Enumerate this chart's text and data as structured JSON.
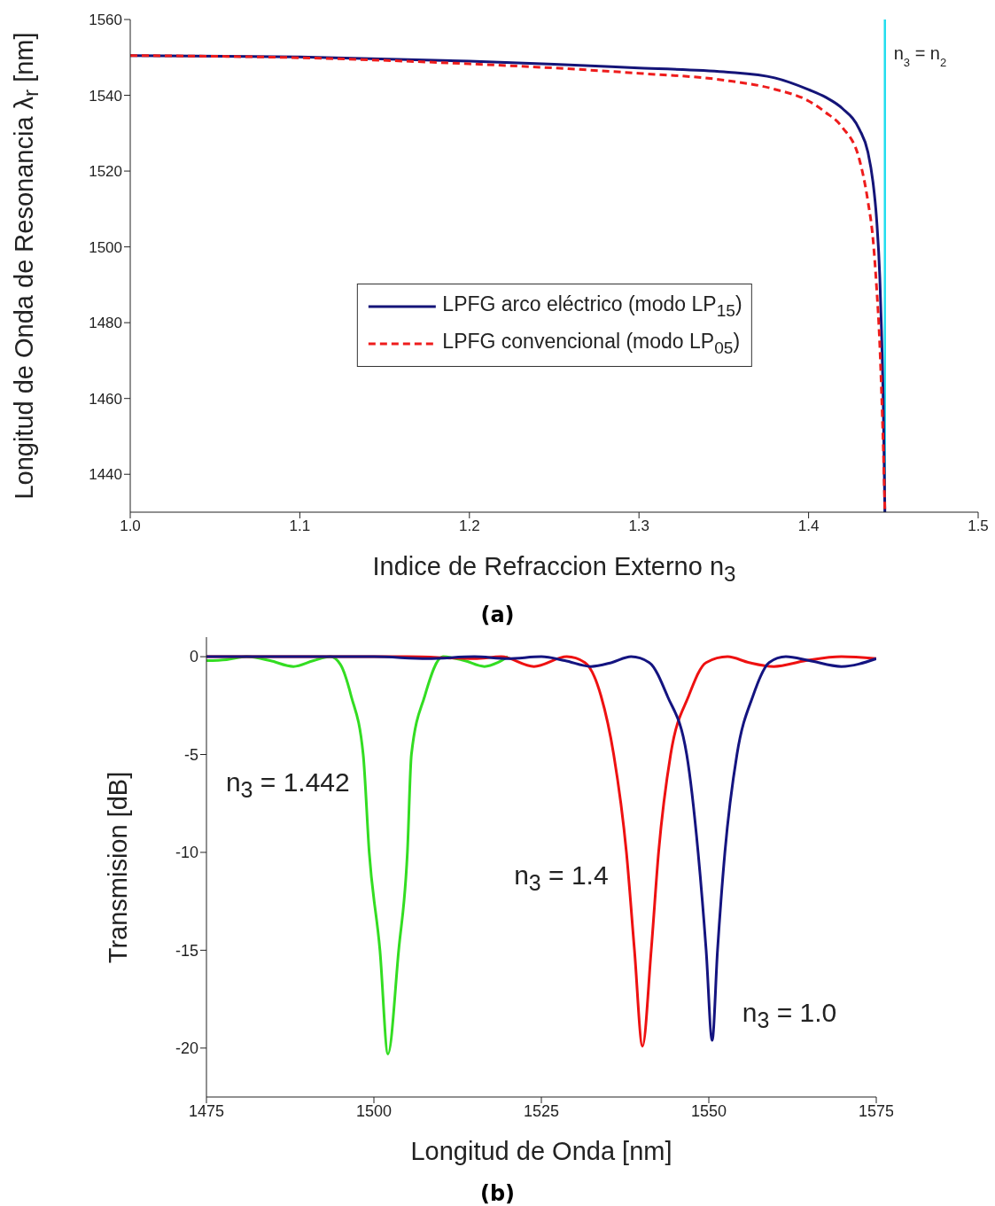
{
  "chart_data": [
    {
      "type": "line",
      "xlabel": "Indice de Refraccion Externo  n$_{3}$",
      "ylabel": "Longitud de Onda de Resonancia  λ$_{r}$  [nm]",
      "annotations": [
        "(a)"
      ],
      "xlim": [
        1.0,
        1.5
      ],
      "xticks": [
        {
          "value": 1,
          "label": "1.0"
        },
        {
          "value": 1.1,
          "label": "1.1"
        },
        {
          "value": 1.2,
          "label": "1.2"
        },
        {
          "value": 1.3,
          "label": "1.3"
        },
        {
          "value": 1.4,
          "label": "1.4"
        },
        {
          "value": 1.5,
          "label": "1.5"
        }
      ],
      "ylim": [
        1430,
        1560
      ],
      "yticks": [
        1440,
        1460,
        1480,
        1500,
        1520,
        1540,
        1560
      ],
      "legend": "center",
      "marker": "none",
      "ref_lines": [
        {
          "axis": "x",
          "value": 1.445,
          "label": "n$_{3}$ = n$_{2}$",
          "color": "#22ddee"
        }
      ],
      "series": [
        {
          "name": "LPFG arco eléctrico (modo LP$_{15}$)",
          "color": "#141478",
          "line_style": "solid",
          "x": [
            1.0,
            1.1,
            1.2,
            1.25,
            1.3,
            1.35,
            1.38,
            1.4,
            1.41,
            1.42,
            1.43,
            1.435,
            1.438,
            1.44,
            1.442,
            1.443,
            1.444,
            1.445
          ],
          "values": [
            1550.5,
            1550.1,
            1549,
            1548.2,
            1547.2,
            1546.2,
            1544.6,
            1541.5,
            1539.5,
            1536.5,
            1531,
            1525,
            1517,
            1508,
            1492,
            1478,
            1460,
            1430
          ]
        },
        {
          "name": "LPFG convencional  (modo LP$_{05}$)",
          "color": "#ee1c1c",
          "line_style": "dashed",
          "x": [
            1.0,
            1.1,
            1.2,
            1.25,
            1.3,
            1.35,
            1.38,
            1.4,
            1.41,
            1.42,
            1.43,
            1.435,
            1.438,
            1.44,
            1.442,
            1.443,
            1.444,
            1.445
          ],
          "values": [
            1550.5,
            1549.9,
            1548.3,
            1547.2,
            1545.8,
            1544,
            1541.6,
            1538.5,
            1535.5,
            1531.5,
            1523,
            1512,
            1502,
            1490,
            1474,
            1462,
            1448,
            1430
          ]
        }
      ]
    },
    {
      "type": "line",
      "xlabel": "Longitud de Onda [nm]",
      "ylabel": "Transmision  [dB]",
      "annotations": [
        "(b)"
      ],
      "xlim": [
        1475,
        1575
      ],
      "xticks": [
        1475,
        1500,
        1525,
        1550,
        1575
      ],
      "ylim": [
        -22.5,
        1
      ],
      "yticks": [
        -20,
        -15,
        -10,
        -5,
        0
      ],
      "marker": "none",
      "series": [
        {
          "name": "n$_{3}$ = 1.442",
          "color": "#33dd22",
          "x": [
            1475,
            1478,
            1481,
            1484.5,
            1488,
            1491,
            1493.5,
            1495,
            1496.6,
            1498.4,
            1499.3,
            1500.9,
            1502.1,
            1503.7,
            1505,
            1505.6,
            1507.6,
            1510.3,
            1513.5,
            1516.5,
            1518.5,
            1520
          ],
          "values": [
            -0.2,
            -0.15,
            0,
            -0.2,
            -0.5,
            -0.2,
            0,
            -0.4,
            -2,
            -5,
            -10,
            -15,
            -20.3,
            -15,
            -10,
            -5,
            -2,
            0,
            -0.2,
            -0.5,
            -0.3,
            0
          ]
        },
        {
          "name": "n$_{3}$ = 1.4",
          "color": "#ee1111",
          "x": [
            1475,
            1490,
            1505,
            1515,
            1519,
            1523.9,
            1528.8,
            1531.5,
            1533.9,
            1535.8,
            1537.7,
            1538.9,
            1540.1,
            1541.4,
            1542.5,
            1544.3,
            1547,
            1549.6,
            1552.8,
            1556,
            1559.7,
            1564.5,
            1569.8,
            1575
          ],
          "values": [
            0,
            0,
            0,
            -0.1,
            0,
            -0.5,
            0,
            -0.3,
            -2,
            -5,
            -10,
            -15,
            -19.9,
            -15,
            -10,
            -5,
            -2,
            -0.3,
            0,
            -0.3,
            -0.5,
            -0.2,
            0,
            -0.1
          ]
        },
        {
          "name": "n$_{3}$ = 1.0",
          "color": "#141480",
          "x": [
            1475,
            1490,
            1500,
            1508,
            1515,
            1520,
            1525,
            1528.5,
            1532.4,
            1535.5,
            1538.4,
            1541.1,
            1543.8,
            1546.7,
            1548.4,
            1549.6,
            1550.5,
            1551.3,
            1552.4,
            1554.2,
            1556.6,
            1559,
            1561.5,
            1565,
            1569.8,
            1575
          ],
          "values": [
            0,
            0,
            0,
            -0.1,
            0,
            -0.1,
            0,
            -0.2,
            -0.5,
            -0.3,
            0,
            -0.3,
            -2,
            -5,
            -10,
            -15,
            -19.6,
            -15,
            -10,
            -5,
            -2,
            -0.3,
            0,
            -0.2,
            -0.5,
            -0.1
          ]
        }
      ]
    }
  ]
}
